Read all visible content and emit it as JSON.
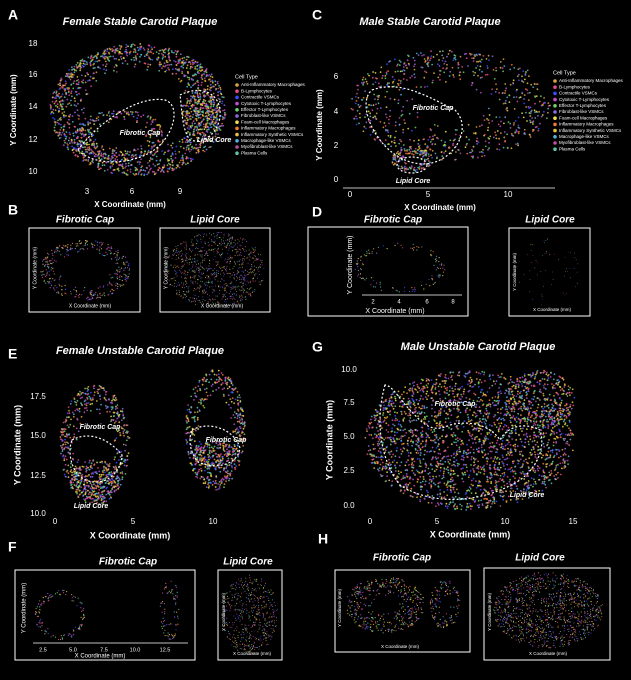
{
  "panels": {
    "A": {
      "letter": "A",
      "title": "Female Stable Carotid Plaque",
      "x_label": "X Coordinate (mm)",
      "y_label": "Y Coordinate (mm)",
      "x_ticks": [
        "3",
        "6",
        "9"
      ],
      "y_ticks": [
        "18",
        "16",
        "14",
        "12",
        "10"
      ],
      "annotations": [
        "Fibrotic Cap",
        "Lipid Core"
      ]
    },
    "B": {
      "letter": "B",
      "fibrotic_title": "Fibrotic Cap",
      "lipid_title": "Lipid Core",
      "x_label": "X Coordinate (mm)",
      "y_label": "Y Coordinate (mm)"
    },
    "C": {
      "letter": "C",
      "title": "Male Stable Carotid Plaque",
      "x_label": "X Coordinate (mm)",
      "y_label": "Y Coordinate (mm)",
      "x_ticks": [
        "0",
        "5",
        "10"
      ],
      "y_ticks": [
        "6",
        "4",
        "2",
        "0"
      ],
      "annotations": [
        "Fibrotic Cap",
        "Lipid Core"
      ]
    },
    "D": {
      "letter": "D",
      "fibrotic_title": "Fibrotic Cap",
      "lipid_title": "Lipid Core",
      "x_label": "X Coordinate (mm)",
      "y_label": "Y Coordinate (mm)",
      "x_ticks": [
        "2",
        "4",
        "6",
        "8"
      ]
    },
    "E": {
      "letter": "E",
      "title": "Female Unstable Carotid Plaque",
      "x_label": "X Coordinate (mm)",
      "y_label": "Y Coordinate (mm)",
      "x_ticks": [
        "0",
        "5",
        "10"
      ],
      "y_ticks": [
        "17.5",
        "15.0",
        "12.5",
        "10.0"
      ],
      "annotations": [
        "Fibrotic Cap",
        "Fibrotic Cap",
        "Lipid Core"
      ]
    },
    "F": {
      "letter": "F",
      "fibrotic_title": "Fibrotic Cap",
      "lipid_title": "Lipid Core",
      "x_label": "X Coordinate (mm)",
      "y_label": "Y Coordinate (mm)",
      "x_ticks": [
        "2.5",
        "5.0",
        "7.5",
        "10.0",
        "12.5"
      ]
    },
    "G": {
      "letter": "G",
      "title": "Male Unstable Carotid Plaque",
      "x_label": "X Coordinate (mm)",
      "y_label": "Y Coordinate (mm)",
      "x_ticks": [
        "0",
        "5",
        "10",
        "15"
      ],
      "y_ticks": [
        "10.0",
        "7.5",
        "5.0",
        "2.5",
        "0.0"
      ],
      "annotations": [
        "Fibrotic Cap",
        "Lipid Core"
      ]
    },
    "H": {
      "letter": "H",
      "fibrotic_title": "Fibrotic Cap",
      "lipid_title": "Lipid Core",
      "x_label": "X Coordinate (mm)",
      "y_label": "Y Coordinate (mm)"
    }
  },
  "legend": {
    "title": "Cell Type",
    "items": [
      {
        "label": "Anti-Inflammatory Macrophages",
        "color": "#d9a441"
      },
      {
        "label": "B-Lymphocytes",
        "color": "#e84a8a"
      },
      {
        "label": "Contractile VSMCs",
        "color": "#3a4cff"
      },
      {
        "label": "Cytotoxic T-Lymphocytes",
        "color": "#c04fd0"
      },
      {
        "label": "Effector T-Lymphocytes",
        "color": "#6fd16a"
      },
      {
        "label": "Fibroblast-like VSMCs",
        "color": "#8d6ae0"
      },
      {
        "label": "Foam-cell Macrophages",
        "color": "#f0e050"
      },
      {
        "label": "Inflammatory Macrophages",
        "color": "#f07a3a"
      },
      {
        "label": "Inflammatory Synthetic VSMCs",
        "color": "#e8c23a"
      },
      {
        "label": "Macrophage-like VSMCs",
        "color": "#52b0e0"
      },
      {
        "label": "Myofibroblast-like VSMCs",
        "color": "#b84fa0"
      },
      {
        "label": "Plasma Cells",
        "color": "#5fc0a8"
      }
    ]
  }
}
